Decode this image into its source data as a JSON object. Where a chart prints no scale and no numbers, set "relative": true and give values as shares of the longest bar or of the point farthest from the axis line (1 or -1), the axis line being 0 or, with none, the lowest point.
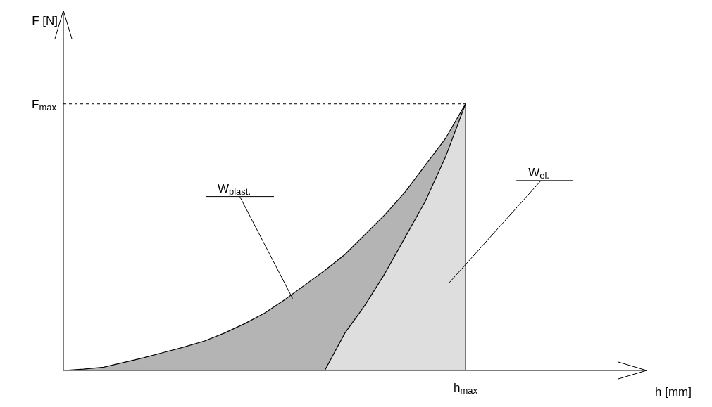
{
  "chart_data": {
    "type": "area",
    "relative": true,
    "xlabel": "h [mm]",
    "marker": "none",
    "legend": false,
    "categories": [
      null,
      null,
      null,
      null,
      null,
      null,
      null,
      null,
      null,
      null,
      null,
      null,
      null,
      null,
      null,
      null,
      null,
      null,
      null,
      null,
      null,
      null,
      null,
      null,
      null,
      null,
      null,
      null,
      null,
      null
    ],
    "series": [
      {
        "color": "#b4b4b4",
        "values": [
          0,
          0.005,
          0.012,
          0.03,
          0.048,
          0.068,
          0.088,
          0.11,
          0.14,
          0.175,
          0.215,
          0.265,
          0.32,
          0.375,
          0.435,
          0.51,
          0.585,
          0.67,
          0.77,
          0.87,
          1,
          null,
          null,
          null,
          null,
          null,
          null,
          null,
          null,
          null
        ]
      },
      {
        "color": "#dedede",
        "values": [
          null,
          null,
          null,
          null,
          null,
          null,
          null,
          null,
          null,
          null,
          null,
          null,
          null,
          0,
          0.14,
          0.245,
          0.365,
          0.5,
          0.635,
          0.8,
          1,
          null,
          null,
          null,
          null,
          null,
          null,
          null,
          null,
          null
        ]
      }
    ],
    "ref_lines": [
      {
        "axis": "y",
        "value": 1,
        "line_style": "dashed",
        "color": "#000000"
      }
    ],
    "annotations": [
      "F [N]",
      "F$_{max}$",
      "h$_{max}$",
      "W$_{plast.}$",
      "W$_{el.}$"
    ]
  }
}
